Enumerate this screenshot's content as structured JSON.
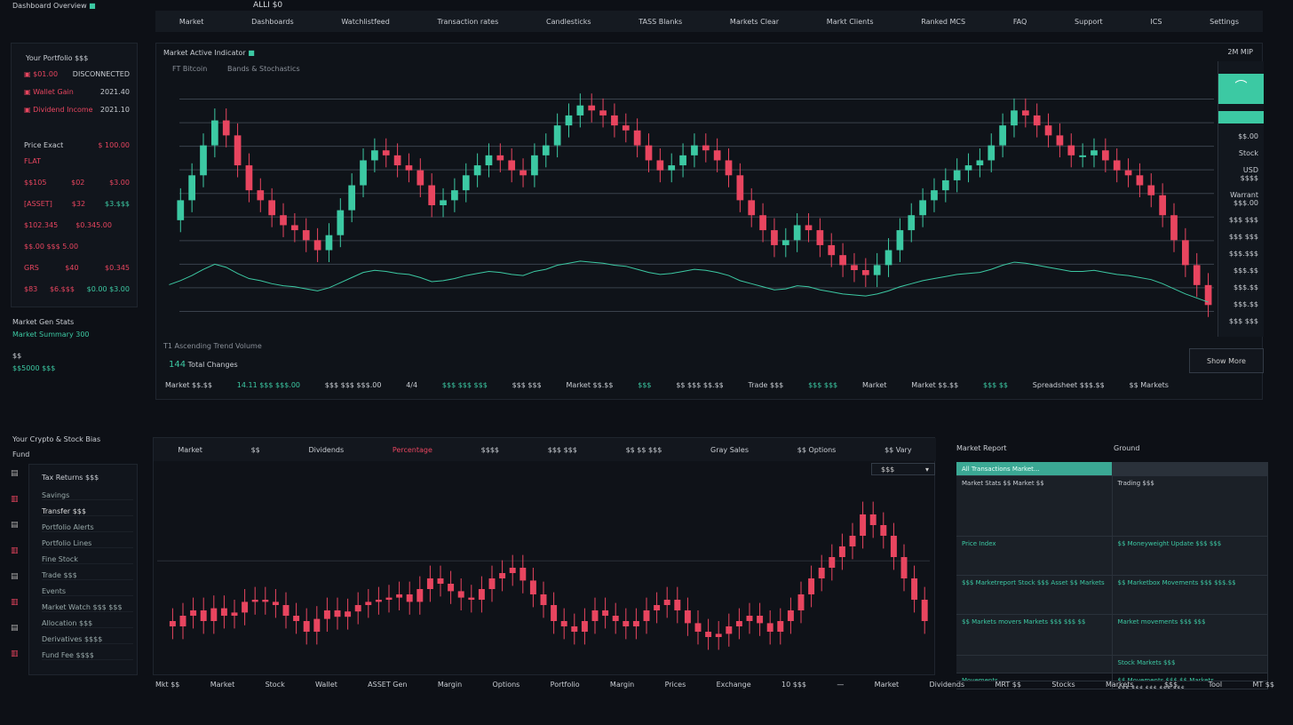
{
  "app": {
    "title": "Dashboard Overview",
    "top_label": "ALLI $0"
  },
  "nav": [
    "Market",
    "Dashboards",
    "Watchlistfeed",
    "Transaction rates",
    "Candlesticks",
    "TASS Blanks",
    "Markets Clear",
    "Markt Clients",
    "Ranked MCS",
    "FAQ",
    "Support",
    "ICS",
    "Settings"
  ],
  "portfolio": {
    "title": "Your Portfolio $$$",
    "rows": [
      {
        "icon": "lock-icon",
        "label": "$01.00",
        "value": "DISCONNECTED"
      },
      {
        "icon": "chain-icon",
        "label": "Wallet Gain",
        "value": "2021.40"
      },
      {
        "icon": "bar-icon",
        "label": "Dividend Income",
        "value": "2021.10"
      }
    ],
    "section": "Price Exact",
    "section_value": "$ 100.00",
    "mini": [
      {
        "a": "FLAT",
        "b": "",
        "c": ""
      },
      {
        "a": "$$105",
        "b": "$02",
        "c": "$3.00"
      },
      {
        "a": "[ASSET]",
        "b": "$32",
        "c": "$3.$$$"
      },
      {
        "a": "$102.345",
        "b": "$0.345.00",
        "c": ""
      },
      {
        "a": "$$.00 $$$ 5.00",
        "b": "",
        "c": ""
      },
      {
        "a": "GRS",
        "b": "$40",
        "c": "$0.345"
      },
      {
        "a": "$83",
        "b": "$6.$$$",
        "c": "$0.00 $3.00"
      }
    ],
    "footer": [
      "Market Gen Stats",
      "Market Summary 300",
      "$$",
      "$$5000 $$$"
    ]
  },
  "chart": {
    "title": "Market Active Indicator",
    "legend": [
      "FT Bitcoin",
      "Bands & Stochastics"
    ],
    "info": "T1 Ascending Trend Volume",
    "sub_value": "144",
    "sub_label": "Total Changes",
    "show_more": "Show More",
    "top_right": "2M MIP",
    "axis_labels": [
      "$$.00",
      "Stock",
      "USD $$$$",
      "Warrant $$$.00",
      "$$$ $$$",
      "$$$ $$$",
      "$$$.$$$",
      "$$$.$$",
      "$$$.$$",
      "$$$.$$",
      "$$$ $$$"
    ],
    "stats": [
      "Market $$.$$",
      "14.11 $$$ $$$.00",
      "$$$ $$$ $$$.00",
      "4/4",
      "$$$ $$$ $$$",
      "$$$ $$$",
      "Market $$.$$",
      "$$$",
      "$$ $$$ $$.$$",
      "Trade $$$",
      "$$$ $$$",
      "Market",
      "Market $$.$$",
      "$$$ $$",
      "Spreadsheet $$$.$$",
      "$$ Markets"
    ],
    "closes": [
      195,
      215,
      240,
      270,
      295,
      280,
      250,
      225,
      215,
      200,
      190,
      185,
      175,
      165,
      180,
      205,
      230,
      255,
      265,
      260,
      250,
      245,
      230,
      210,
      215,
      225,
      240,
      250,
      260,
      255,
      245,
      240,
      260,
      270,
      290,
      300,
      310,
      305,
      300,
      290,
      285,
      270,
      255,
      245,
      250,
      260,
      270,
      265,
      255,
      240,
      215,
      200,
      185,
      170,
      175,
      190,
      185,
      170,
      160,
      150,
      145,
      140,
      150,
      165,
      185,
      200,
      215,
      225,
      235,
      245,
      250,
      255,
      270,
      290,
      305,
      300,
      290,
      280,
      270,
      260,
      260,
      265,
      255,
      245,
      240,
      230,
      220,
      200,
      175,
      150,
      130,
      110
    ]
  },
  "sidebar2": {
    "title": "Your Crypto & Stock Bias",
    "sub": "Fund",
    "card_title": "Tax Returns $$$",
    "items": [
      "Savings",
      "Transfer $$$",
      "Portfolio Alerts",
      "Portfolio Lines",
      "Fine Stock",
      "Trade $$$",
      "Events",
      "Market Watch $$$ $$$",
      "Allocation $$$",
      "Derivatives $$$$",
      "Fund Fee $$$$"
    ]
  },
  "bottom_chart": {
    "tabs": [
      "Market",
      "$$",
      "Dividends",
      "Percentage",
      "$$$$",
      "$$$ $$$",
      "$$ $$ $$$",
      "Gray Sales",
      "$$ Options",
      "$$ Vary"
    ],
    "dropdown": "$$$",
    "closes": [
      600,
      595,
      605,
      610,
      600,
      612,
      605,
      608,
      618,
      620,
      618,
      615,
      605,
      600,
      590,
      602,
      610,
      604,
      609,
      615,
      618,
      620,
      622,
      625,
      618,
      630,
      640,
      635,
      628,
      622,
      620,
      630,
      640,
      645,
      650,
      638,
      625,
      615,
      600,
      595,
      590,
      600,
      610,
      605,
      600,
      595,
      600,
      610,
      615,
      620,
      610,
      598,
      590,
      585,
      588,
      595,
      600,
      605,
      598,
      590,
      600,
      610,
      625,
      640,
      650,
      660,
      670,
      680,
      700,
      690,
      680,
      660,
      640,
      620,
      600
    ]
  },
  "report": {
    "title": "Market Report",
    "title2": "Ground",
    "header": "All Transactions Market...",
    "cells": [
      "Market Stats $$   Market $$",
      "Trading $$$",
      "Price Index",
      "$$ Moneyweight Update $$$ $$$",
      "$$$ Marketreport Stock $$$ Asset $$ Markets",
      "$$ Marketbox Movements $$$ $$$.$$",
      "$$ Markets movers Markets $$$ $$$ $$",
      "Market movements $$$ $$$",
      "",
      "Stock Markets $$$",
      "Movements",
      "$$ Movements $$$ $$ Markets ...",
      "",
      "$$$ $$$  $$$  $$$ $$$"
    ]
  },
  "footer": [
    "Mkt $$",
    "Market",
    "Stock",
    "Wallet",
    "ASSET Gen",
    "Margin",
    "Options",
    "Portfolio",
    "Margin",
    "Prices",
    "Exchange",
    "10 $$$",
    "—",
    "Market",
    "Dividends",
    "MRT $$",
    "Stocks",
    "Markets",
    "$$$",
    "Tool",
    "MT $$"
  ],
  "colors": {
    "up": "#3cc9a3",
    "down": "#e8455f",
    "bg": "#0d1016"
  }
}
